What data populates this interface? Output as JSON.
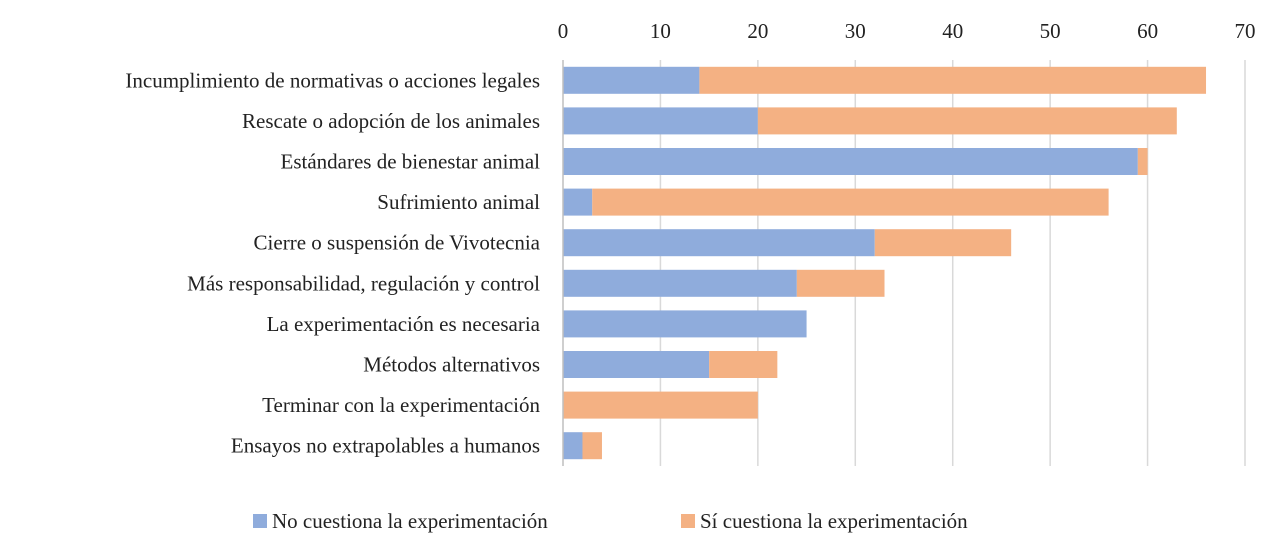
{
  "chart_data": {
    "type": "bar",
    "orientation": "horizontal",
    "stacked": true,
    "title": "",
    "xlabel": "",
    "ylabel": "",
    "xlim": [
      0,
      70
    ],
    "xticks": [
      0,
      10,
      20,
      30,
      40,
      50,
      60,
      70
    ],
    "x_axis_position": "top",
    "grid": true,
    "legend_position": "bottom",
    "categories": [
      "Incumplimiento de normativas o acciones legales",
      "Rescate o adopción de los animales",
      "Estándares de bienestar animal",
      "Sufrimiento animal",
      "Cierre o suspensión de Vivotecnia",
      "Más responsabilidad, regulación y control",
      "La experimentación es necesaria",
      "Métodos alternativos",
      "Terminar con la experimentación",
      "Ensayos no extrapolables a humanos"
    ],
    "series": [
      {
        "name": "No cuestiona la experimentación",
        "color": "#8FACDC",
        "values": [
          14,
          20,
          59,
          3,
          32,
          24,
          25,
          15,
          0,
          2
        ]
      },
      {
        "name": "Sí cuestiona la experimentación",
        "color": "#F4B183",
        "values": [
          52,
          43,
          1,
          53,
          14,
          9,
          0,
          7,
          20,
          2
        ]
      }
    ]
  }
}
